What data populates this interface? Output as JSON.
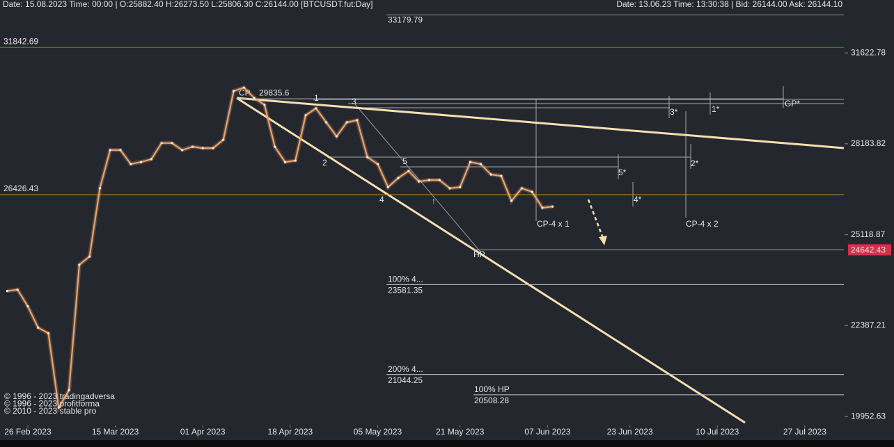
{
  "header": {
    "left": "Date: 15.08.2023 Time: 00:00 | O:25882.40 H:26273.50 L:25806.30 C:26144.00 [BTCUSDT.fut:Day]",
    "right": "Date: 13.06.23 Time: 13:30:38 | Bid: 26144.00 Ask: 26144.10"
  },
  "watermarks": [
    "© 1996 - 2023 tradingadversa",
    "© 1996 - 2023 profitforma",
    "© 2010 - 2023 stable pro"
  ],
  "chart_data": {
    "type": "line",
    "log_scale": true,
    "color": "#e9a36a",
    "x": [
      "2023-02-22",
      "2023-02-24",
      "2023-02-26",
      "2023-02-28",
      "2023-03-02",
      "2023-03-04",
      "2023-03-06",
      "2023-03-08",
      "2023-03-10",
      "2023-03-12",
      "2023-03-14",
      "2023-03-16",
      "2023-03-18",
      "2023-03-20",
      "2023-03-22",
      "2023-03-24",
      "2023-03-26",
      "2023-03-28",
      "2023-03-30",
      "2023-04-01",
      "2023-04-03",
      "2023-04-05",
      "2023-04-07",
      "2023-04-09",
      "2023-04-11",
      "2023-04-13",
      "2023-04-15",
      "2023-04-17",
      "2023-04-19",
      "2023-04-21",
      "2023-04-23",
      "2023-04-25",
      "2023-04-27",
      "2023-04-29",
      "2023-05-01",
      "2023-05-03",
      "2023-05-05",
      "2023-05-07",
      "2023-05-09",
      "2023-05-11",
      "2023-05-13",
      "2023-05-15",
      "2023-05-17",
      "2023-05-19",
      "2023-05-21",
      "2023-05-23",
      "2023-05-25",
      "2023-05-27",
      "2023-05-29",
      "2023-05-31",
      "2023-06-02",
      "2023-06-04",
      "2023-06-06",
      "2023-06-08"
    ],
    "values": [
      23390,
      23430,
      22940,
      22330,
      22170,
      20180,
      20630,
      24180,
      24435,
      26640,
      27960,
      27960,
      27470,
      27540,
      27640,
      28210,
      28210,
      27960,
      28080,
      28030,
      28030,
      28330,
      30130,
      30260,
      29870,
      29610,
      28080,
      27540,
      27590,
      29220,
      29480,
      28960,
      28450,
      28960,
      29040,
      27710,
      27470,
      26680,
      26990,
      27230,
      26870,
      26920,
      26920,
      26640,
      26680,
      27540,
      27470,
      27110,
      27060,
      26220,
      26640,
      26520,
      25990,
      26030
    ],
    "xlim": [
      "2023-02-21",
      "2023-08-04"
    ],
    "xticks": [
      {
        "value": "2023-02-26",
        "label": "26 Feb 2023"
      },
      {
        "value": "2023-03-15",
        "label": "15 Mar 2023"
      },
      {
        "value": "2023-04-01",
        "label": "01 Apr 2023"
      },
      {
        "value": "2023-04-18",
        "label": "18 Apr 2023"
      },
      {
        "value": "2023-05-05",
        "label": "05 May 2023"
      },
      {
        "value": "2023-05-21",
        "label": "21 May 2023"
      },
      {
        "value": "2023-06-07",
        "label": "07 Jun 2023"
      },
      {
        "value": "2023-06-23",
        "label": "23 Jun 2023"
      },
      {
        "value": "2023-07-10",
        "label": "10 Jul 2023"
      },
      {
        "value": "2023-07-27",
        "label": "27 Jul 2023"
      }
    ],
    "ylim": [
      19700,
      33400
    ],
    "yticks": [
      31622.78,
      28183.82,
      25118.87,
      22387.21,
      19952.63
    ],
    "levels": [
      {
        "value": 33179.79,
        "color": "#9a9a9a"
      },
      {
        "value": 31842.69,
        "color": "#2f9e44"
      },
      {
        "value": 29835.6,
        "color": "#b8b8b8",
        "note": "CP"
      },
      {
        "value": 26426.43,
        "color": "#c98a3c"
      },
      {
        "value": 24642.43,
        "color": "#b0b0b0",
        "label_color": "#d3304b"
      },
      {
        "value": 23581.35,
        "color": "#c8c8c8",
        "note": "100%  4..."
      },
      {
        "value": 21044.25,
        "color": "#c8c8c8",
        "note": "200%  4..."
      },
      {
        "value": 20508.28,
        "color": "#c8c8c8",
        "note": "100% HP"
      }
    ],
    "wave_labels": [
      "1",
      "2",
      "3",
      "4",
      "5",
      "↑",
      "3*",
      "1*",
      "GP*",
      "5*",
      "2*",
      "4*",
      "CP-4 x 1",
      "CP-4 x 2",
      "HP"
    ]
  }
}
